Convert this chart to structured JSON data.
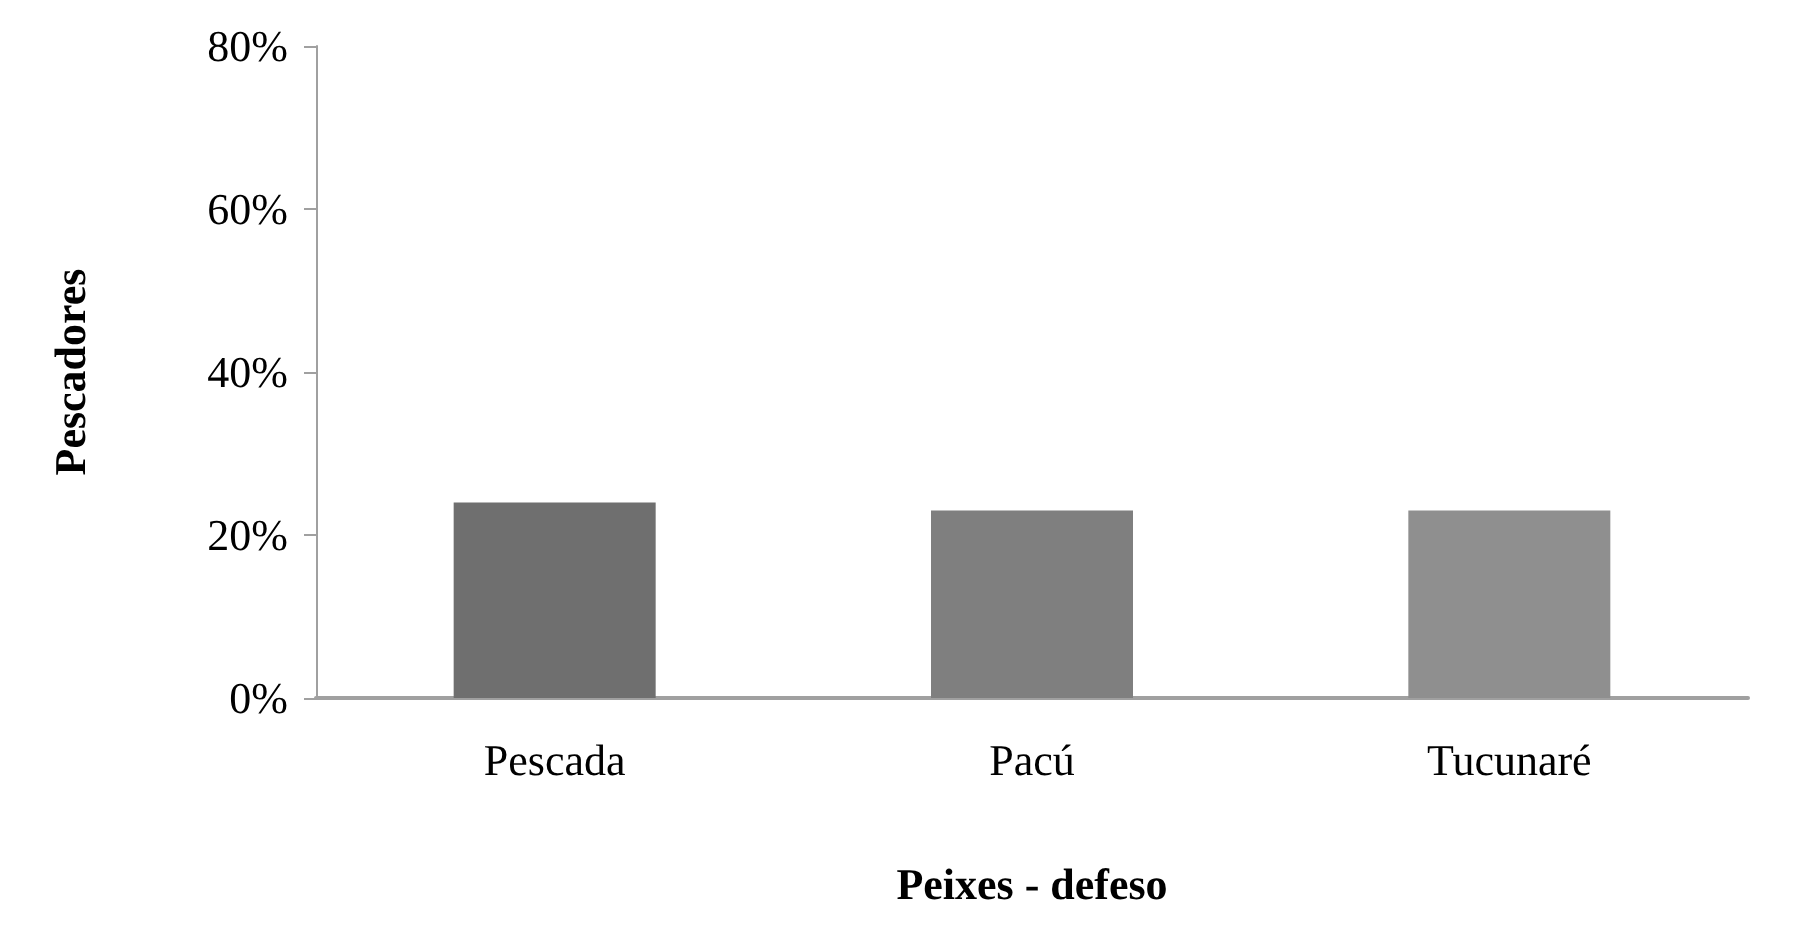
{
  "chart_data": {
    "type": "bar",
    "xlabel": "Peixes - defeso",
    "ylabel": "Pescadores",
    "categories": [
      "Pescada",
      "Pacú",
      "Tucunaré"
    ],
    "values": [
      24,
      23,
      23
    ],
    "colors": [
      "#6f6f6f",
      "#7f7f7f",
      "#8f8f8f"
    ],
    "ylim": [
      0,
      80
    ],
    "yticks": [
      {
        "value": 0,
        "label": "0%"
      },
      {
        "value": 20,
        "label": "20%"
      },
      {
        "value": 40,
        "label": "40%"
      },
      {
        "value": 60,
        "label": "60%"
      },
      {
        "value": 80,
        "label": "80%"
      }
    ],
    "grid": false
  }
}
